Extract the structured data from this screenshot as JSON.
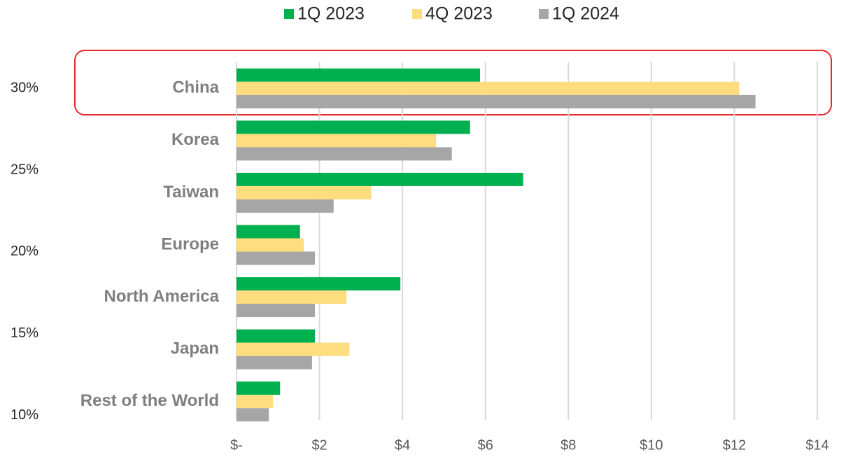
{
  "chart_data": {
    "type": "barh",
    "categories": [
      "China",
      "Korea",
      "Taiwan",
      "Europe",
      "North America",
      "Japan",
      "Rest of the World"
    ],
    "series": [
      {
        "name": "1Q 2023",
        "color": "#00b050",
        "values": [
          5.87,
          5.63,
          6.91,
          1.53,
          3.95,
          1.89,
          1.05
        ]
      },
      {
        "name": "4Q 2023",
        "color": "#fedd7f",
        "values": [
          12.12,
          4.81,
          3.25,
          1.62,
          2.65,
          2.72,
          0.88
        ]
      },
      {
        "name": "1Q 2024",
        "color": "#a6a6a6",
        "values": [
          12.51,
          5.19,
          2.34,
          1.89,
          1.89,
          1.82,
          0.78
        ]
      }
    ],
    "xlim": [
      0,
      14
    ],
    "xticks": [
      {
        "value": 0,
        "label": "$-"
      },
      {
        "value": 2,
        "label": "$2"
      },
      {
        "value": 4,
        "label": "$4"
      },
      {
        "value": 6,
        "label": "$6"
      },
      {
        "value": 8,
        "label": "$8"
      },
      {
        "value": 10,
        "label": "$10"
      },
      {
        "value": 12,
        "label": "$12"
      },
      {
        "value": 14,
        "label": "$14"
      }
    ],
    "y2lim": [
      9.25,
      31.6
    ],
    "y2ticks": [
      {
        "value": 10,
        "label": "10%"
      },
      {
        "value": 15,
        "label": "15%"
      },
      {
        "value": 20,
        "label": "20%"
      },
      {
        "value": 25,
        "label": "25%"
      },
      {
        "value": 30,
        "label": "30%"
      }
    ],
    "grid": true,
    "legend": "top"
  }
}
